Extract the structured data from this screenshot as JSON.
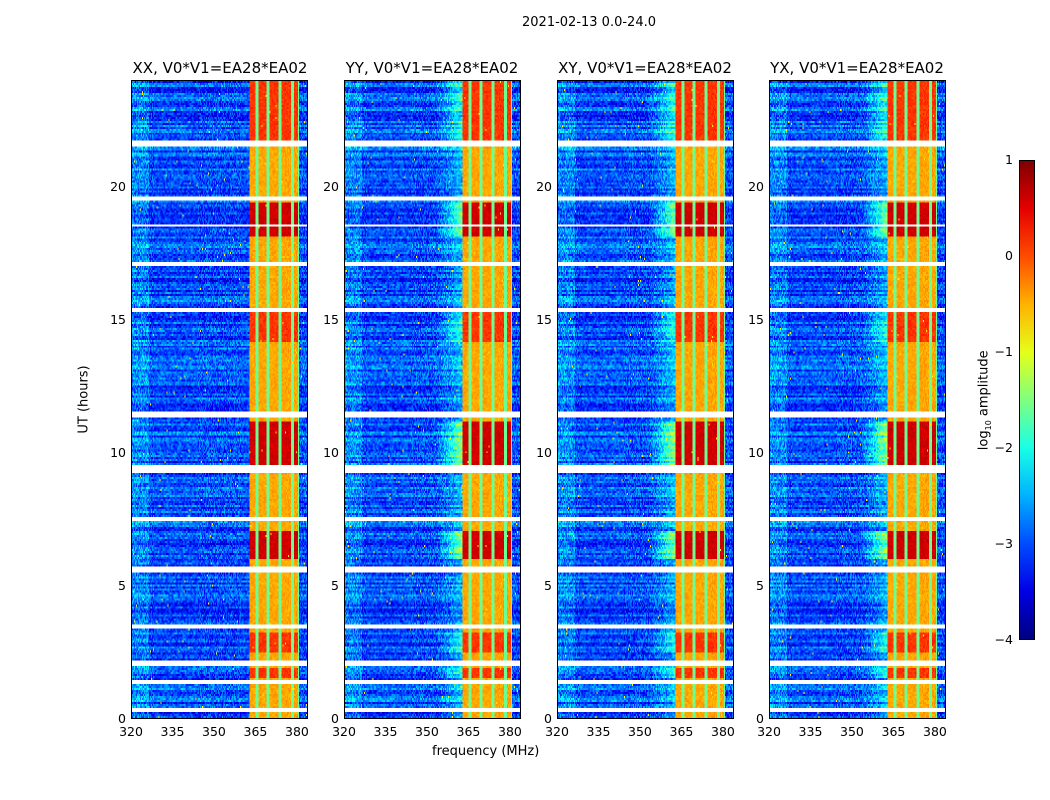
{
  "chart_data": {
    "type": "heatmap",
    "title": "2021-02-13 0.0-24.0",
    "xlabel": "frequency (MHz)",
    "ylabel": "UT (hours)",
    "xlim": [
      320,
      384
    ],
    "ylim": [
      0,
      24
    ],
    "xticks": [
      "320",
      "335",
      "350",
      "365",
      "380"
    ],
    "yticks": [
      "0",
      "5",
      "10",
      "15",
      "20"
    ],
    "panels": [
      {
        "title": "XX, V0*V1=EA28*EA02",
        "leakage_ramp": false
      },
      {
        "title": "YY, V0*V1=EA28*EA02",
        "leakage_ramp": true
      },
      {
        "title": "XY, V0*V1=EA28*EA02",
        "leakage_ramp": true
      },
      {
        "title": "YX, V0*V1=EA28*EA02",
        "leakage_ramp": true
      }
    ],
    "colorbar": {
      "label": "log10 amplitude",
      "label_main": "log",
      "label_sub": "10",
      "label_rest": " amplitude",
      "colormap": "jet",
      "range": [
        -4,
        1
      ],
      "ticks": [
        "1",
        "0",
        "−1",
        "−2",
        "−3",
        "−4"
      ]
    },
    "background_level_log10": -3.0,
    "bright_band_mhz": [
      363,
      381
    ],
    "bright_band_level_log10": [
      -1.0,
      0.9
    ],
    "flagged_hours": [
      [
        21.6,
        21.8
      ],
      [
        19.55,
        19.7
      ],
      [
        18.55,
        18.65
      ],
      [
        17.05,
        17.2
      ],
      [
        15.35,
        15.5
      ],
      [
        11.35,
        11.55
      ],
      [
        9.3,
        9.6
      ],
      [
        7.45,
        7.6
      ],
      [
        5.55,
        5.7
      ],
      [
        3.4,
        3.55
      ],
      [
        2.0,
        2.2
      ],
      [
        1.3,
        1.45
      ],
      [
        0.25,
        0.4
      ]
    ],
    "band_dividers_mhz": [
      365.5,
      369.5,
      374,
      378.5,
      381
    ]
  }
}
